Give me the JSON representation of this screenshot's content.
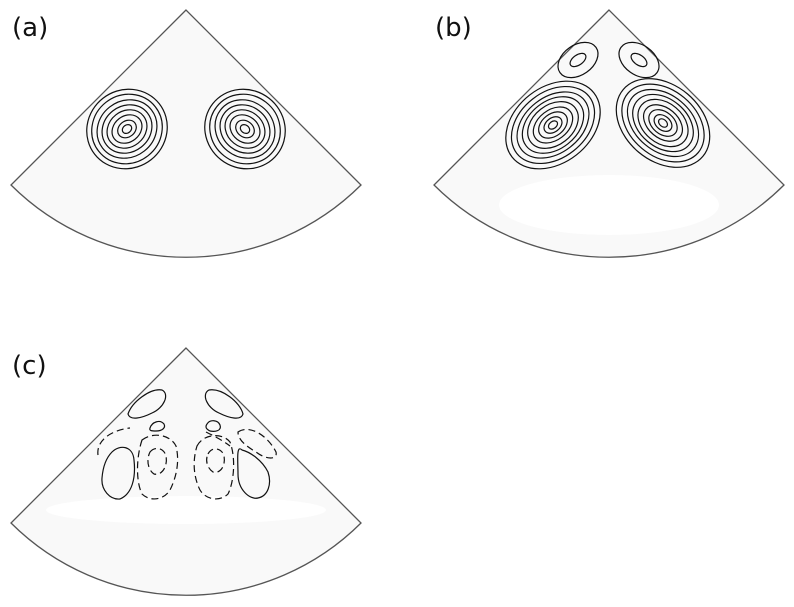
{
  "panels": [
    {
      "label": "(a)"
    },
    {
      "label": "(b)"
    },
    {
      "label": "(c)"
    }
  ],
  "colors": {
    "wedge_fill": "#f9f9f9",
    "wedge_edge": "#555555",
    "contour_line": "#111111",
    "shade_low": "#f4f4f4",
    "shade_high": "#8a8a8a"
  }
}
